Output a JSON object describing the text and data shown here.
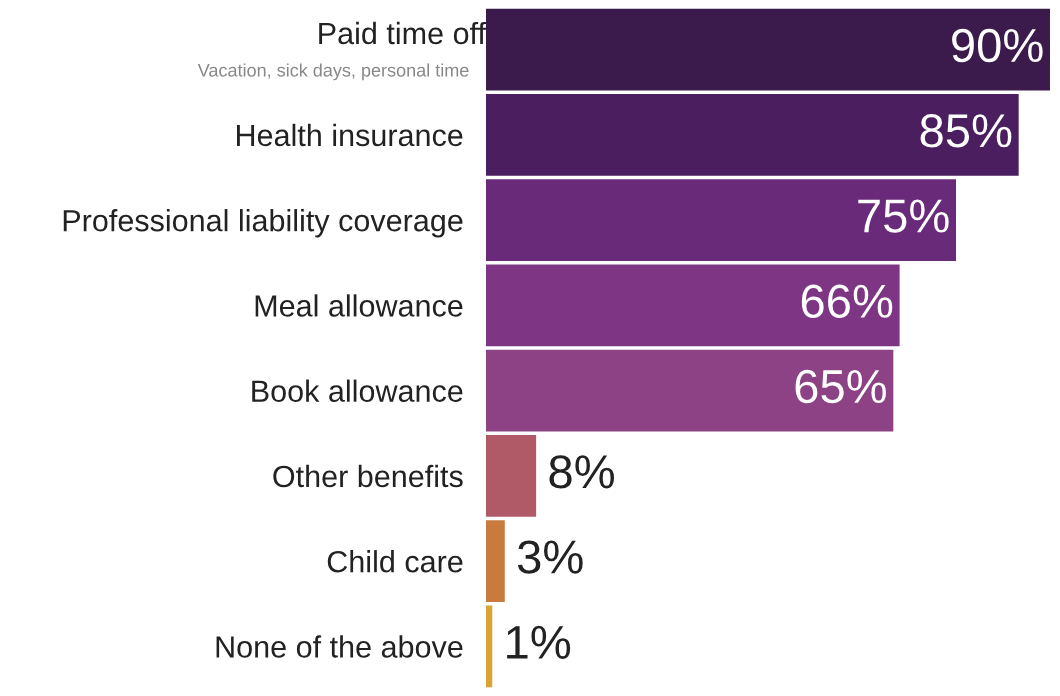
{
  "chart_data": {
    "type": "bar",
    "orientation": "horizontal",
    "categories": [
      "Paid time off",
      "Health insurance",
      "Professional liability coverage",
      "Meal allowance",
      "Book allowance",
      "Other benefits",
      "Child care",
      "None of the above"
    ],
    "values": [
      90,
      85,
      75,
      66,
      65,
      8,
      3,
      1
    ],
    "colors": [
      "#3b1a4c",
      "#4b1e60",
      "#6a2a7a",
      "#7e3684",
      "#8c4284",
      "#b05a68",
      "#c97b3e",
      "#dba234"
    ],
    "value_labels": [
      "90%",
      "85%",
      "75%",
      "66%",
      "65%",
      "8%",
      "3%",
      "1%"
    ],
    "annotations": [
      "Vacation, sick days, personal time"
    ],
    "grid": false,
    "legend": false
  }
}
